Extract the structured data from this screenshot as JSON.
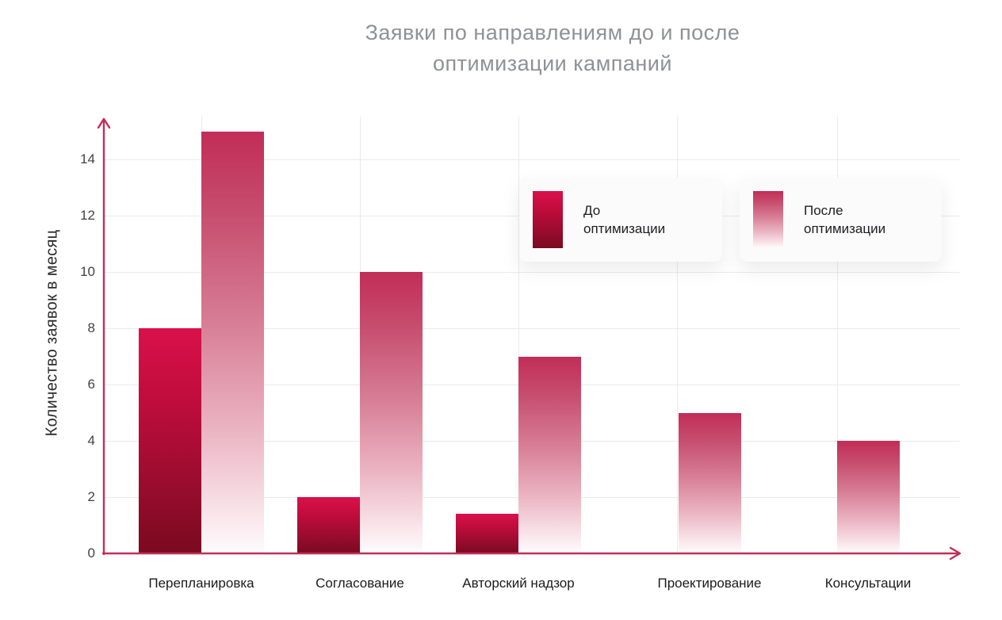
{
  "title": {
    "line1": "Заявки по направлениям до и после",
    "line2": "оптимизации кампаний"
  },
  "chart_data": {
    "type": "bar",
    "categories": [
      "Перепланировка",
      "Согласование",
      "Авторский надзор",
      "Проектирование",
      "Консультации"
    ],
    "series": [
      {
        "name": "До оптимизации",
        "values": [
          8,
          2,
          1.4,
          0,
          0
        ]
      },
      {
        "name": "После оптимизации",
        "values": [
          15,
          10,
          7,
          5,
          4
        ]
      }
    ],
    "title": "Заявки по направлениям до и после оптимизации кампаний",
    "xlabel": "",
    "ylabel": "Количество заявок в месяц",
    "ylim": [
      0,
      15
    ],
    "yticks": [
      0,
      2,
      4,
      6,
      8,
      10,
      12,
      14
    ],
    "grid": true,
    "legend_position": "upper-right"
  },
  "legend": {
    "items": [
      {
        "label": "До оптимизации"
      },
      {
        "label": "После оптимизации"
      }
    ]
  },
  "colors": {
    "axis": "#C22E58",
    "grid": "#EAEAEA",
    "title_text": "#8F9194",
    "bar_before_top": "#D9114B",
    "bar_before_bottom": "#7A0A1F",
    "bar_after_top": "#C22D57",
    "bar_after_bottom": "#FEFCFD",
    "legend_card_bg": "#FBFBFC"
  }
}
